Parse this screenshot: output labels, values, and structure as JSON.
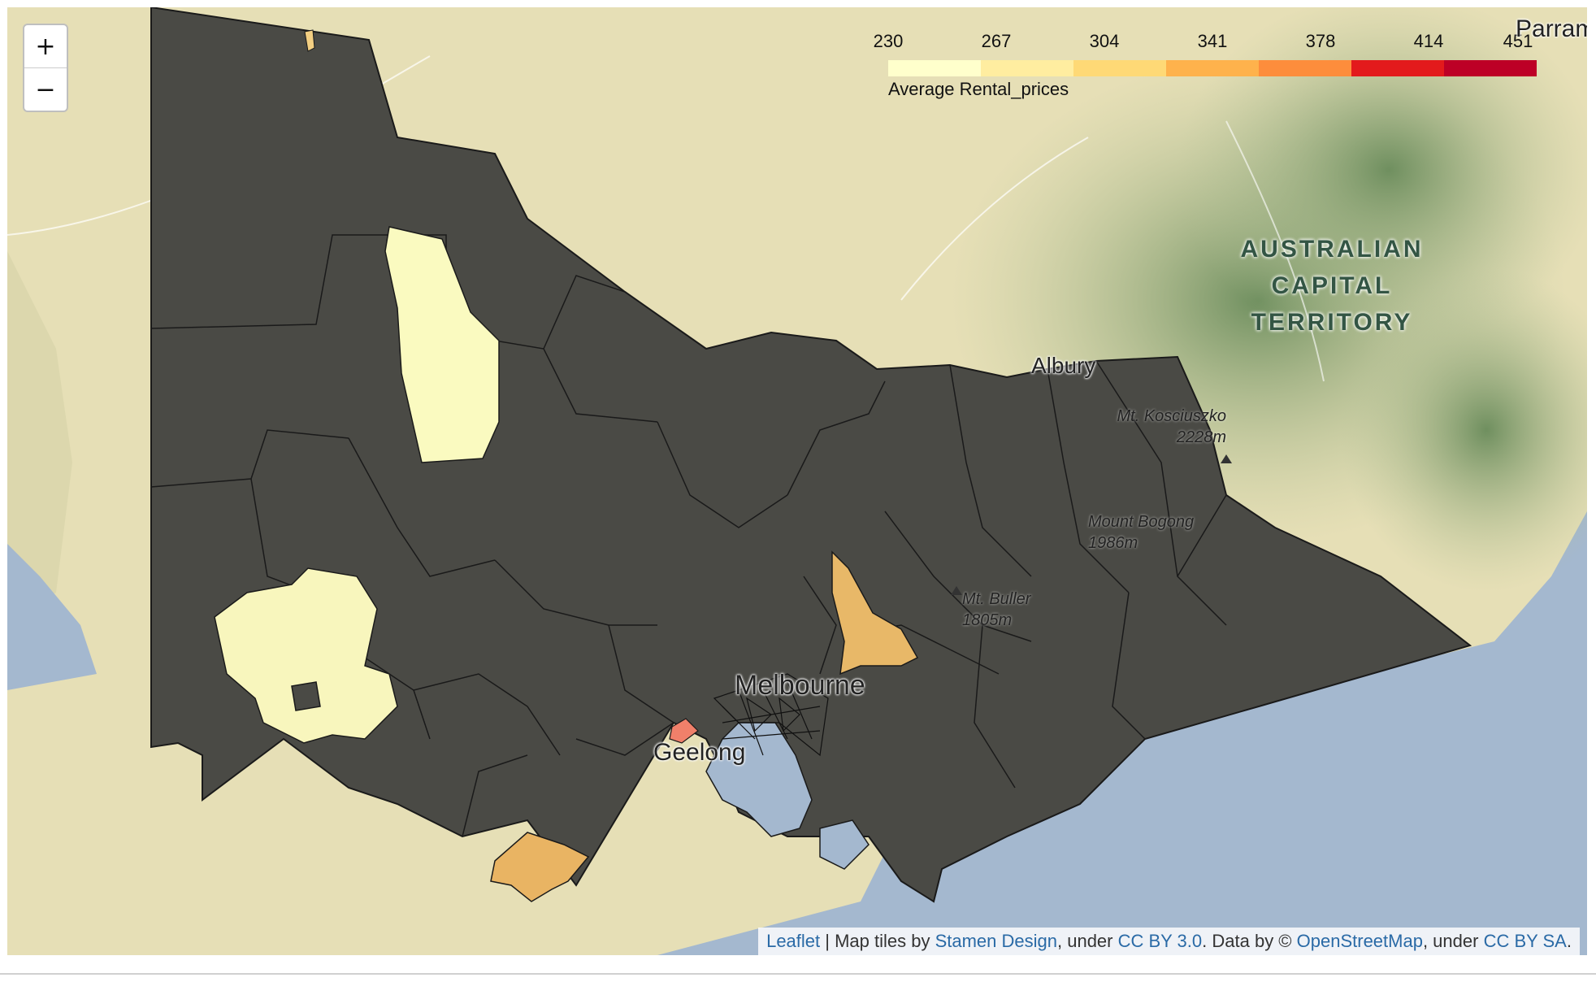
{
  "map": {
    "zoom_in": "+",
    "zoom_out": "−",
    "legend": {
      "title": "Average Rental_prices",
      "ticks": [
        "230",
        "267",
        "304",
        "341",
        "378",
        "414",
        "451"
      ],
      "colors": [
        "#ffffcc",
        "#ffeda0",
        "#fed976",
        "#feb24c",
        "#fd8d3c",
        "#e31a1c",
        "#bd0026"
      ]
    },
    "labels": {
      "melbourne": "Melbourne",
      "geelong": "Geelong",
      "albury": "Albury",
      "parram": "Parram",
      "act": [
        "AUSTRALIAN",
        "CAPITAL",
        "TERRITORY"
      ],
      "kosciuszko": [
        "Mt. Kosciuszko",
        "2228m"
      ],
      "bogong": [
        "Mount Bogong",
        "1986m"
      ],
      "buller": [
        "Mt. Buller",
        "1805m"
      ]
    },
    "regions": [
      {
        "id": "north-west",
        "value": 235,
        "color": "#fafac0"
      },
      {
        "id": "south-west",
        "value": 238,
        "color": "#f8f6bd"
      },
      {
        "id": "mansfield",
        "value": 295,
        "color": "#e8b868"
      },
      {
        "id": "otways",
        "value": 300,
        "color": "#e9b463"
      },
      {
        "id": "werribee",
        "value": 400,
        "color": "#f0806a"
      },
      {
        "id": "far-north-tip",
        "value": 290,
        "color": "#f3cf82"
      }
    ],
    "no_data_color": "#4a4a45",
    "attribution": {
      "leaflet": "Leaflet",
      "t1": " | Map tiles by ",
      "stamen": "Stamen Design",
      "t2": ", under ",
      "ccby": "CC BY 3.0",
      "t3": ". Data by © ",
      "osm": "OpenStreetMap",
      "t4": ", under ",
      "ccbysa": "CC BY SA",
      "t5": "."
    }
  }
}
